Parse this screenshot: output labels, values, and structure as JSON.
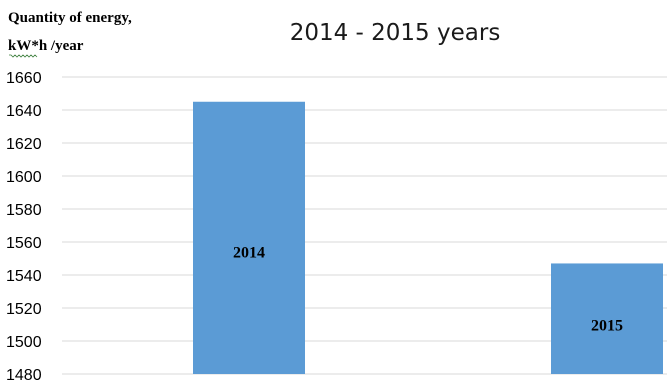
{
  "chart_data": {
    "type": "bar",
    "title": "2014 - 2015 years",
    "ylabel_lines": [
      "Quantity of energy,",
      "kW*h /year"
    ],
    "xlabel": "",
    "categories": [
      "2014",
      "2015"
    ],
    "values": [
      1645,
      1547
    ],
    "ylim": [
      1480,
      1660
    ],
    "yticks": [
      1480,
      1500,
      1520,
      1540,
      1560,
      1580,
      1600,
      1620,
      1640,
      1660
    ],
    "data_labels": [
      "2014",
      "2015"
    ],
    "grid": true,
    "legend": "none",
    "colors": {
      "bar": "#5b9bd5",
      "grid": "#d9d9d9",
      "text": "#000000"
    }
  }
}
